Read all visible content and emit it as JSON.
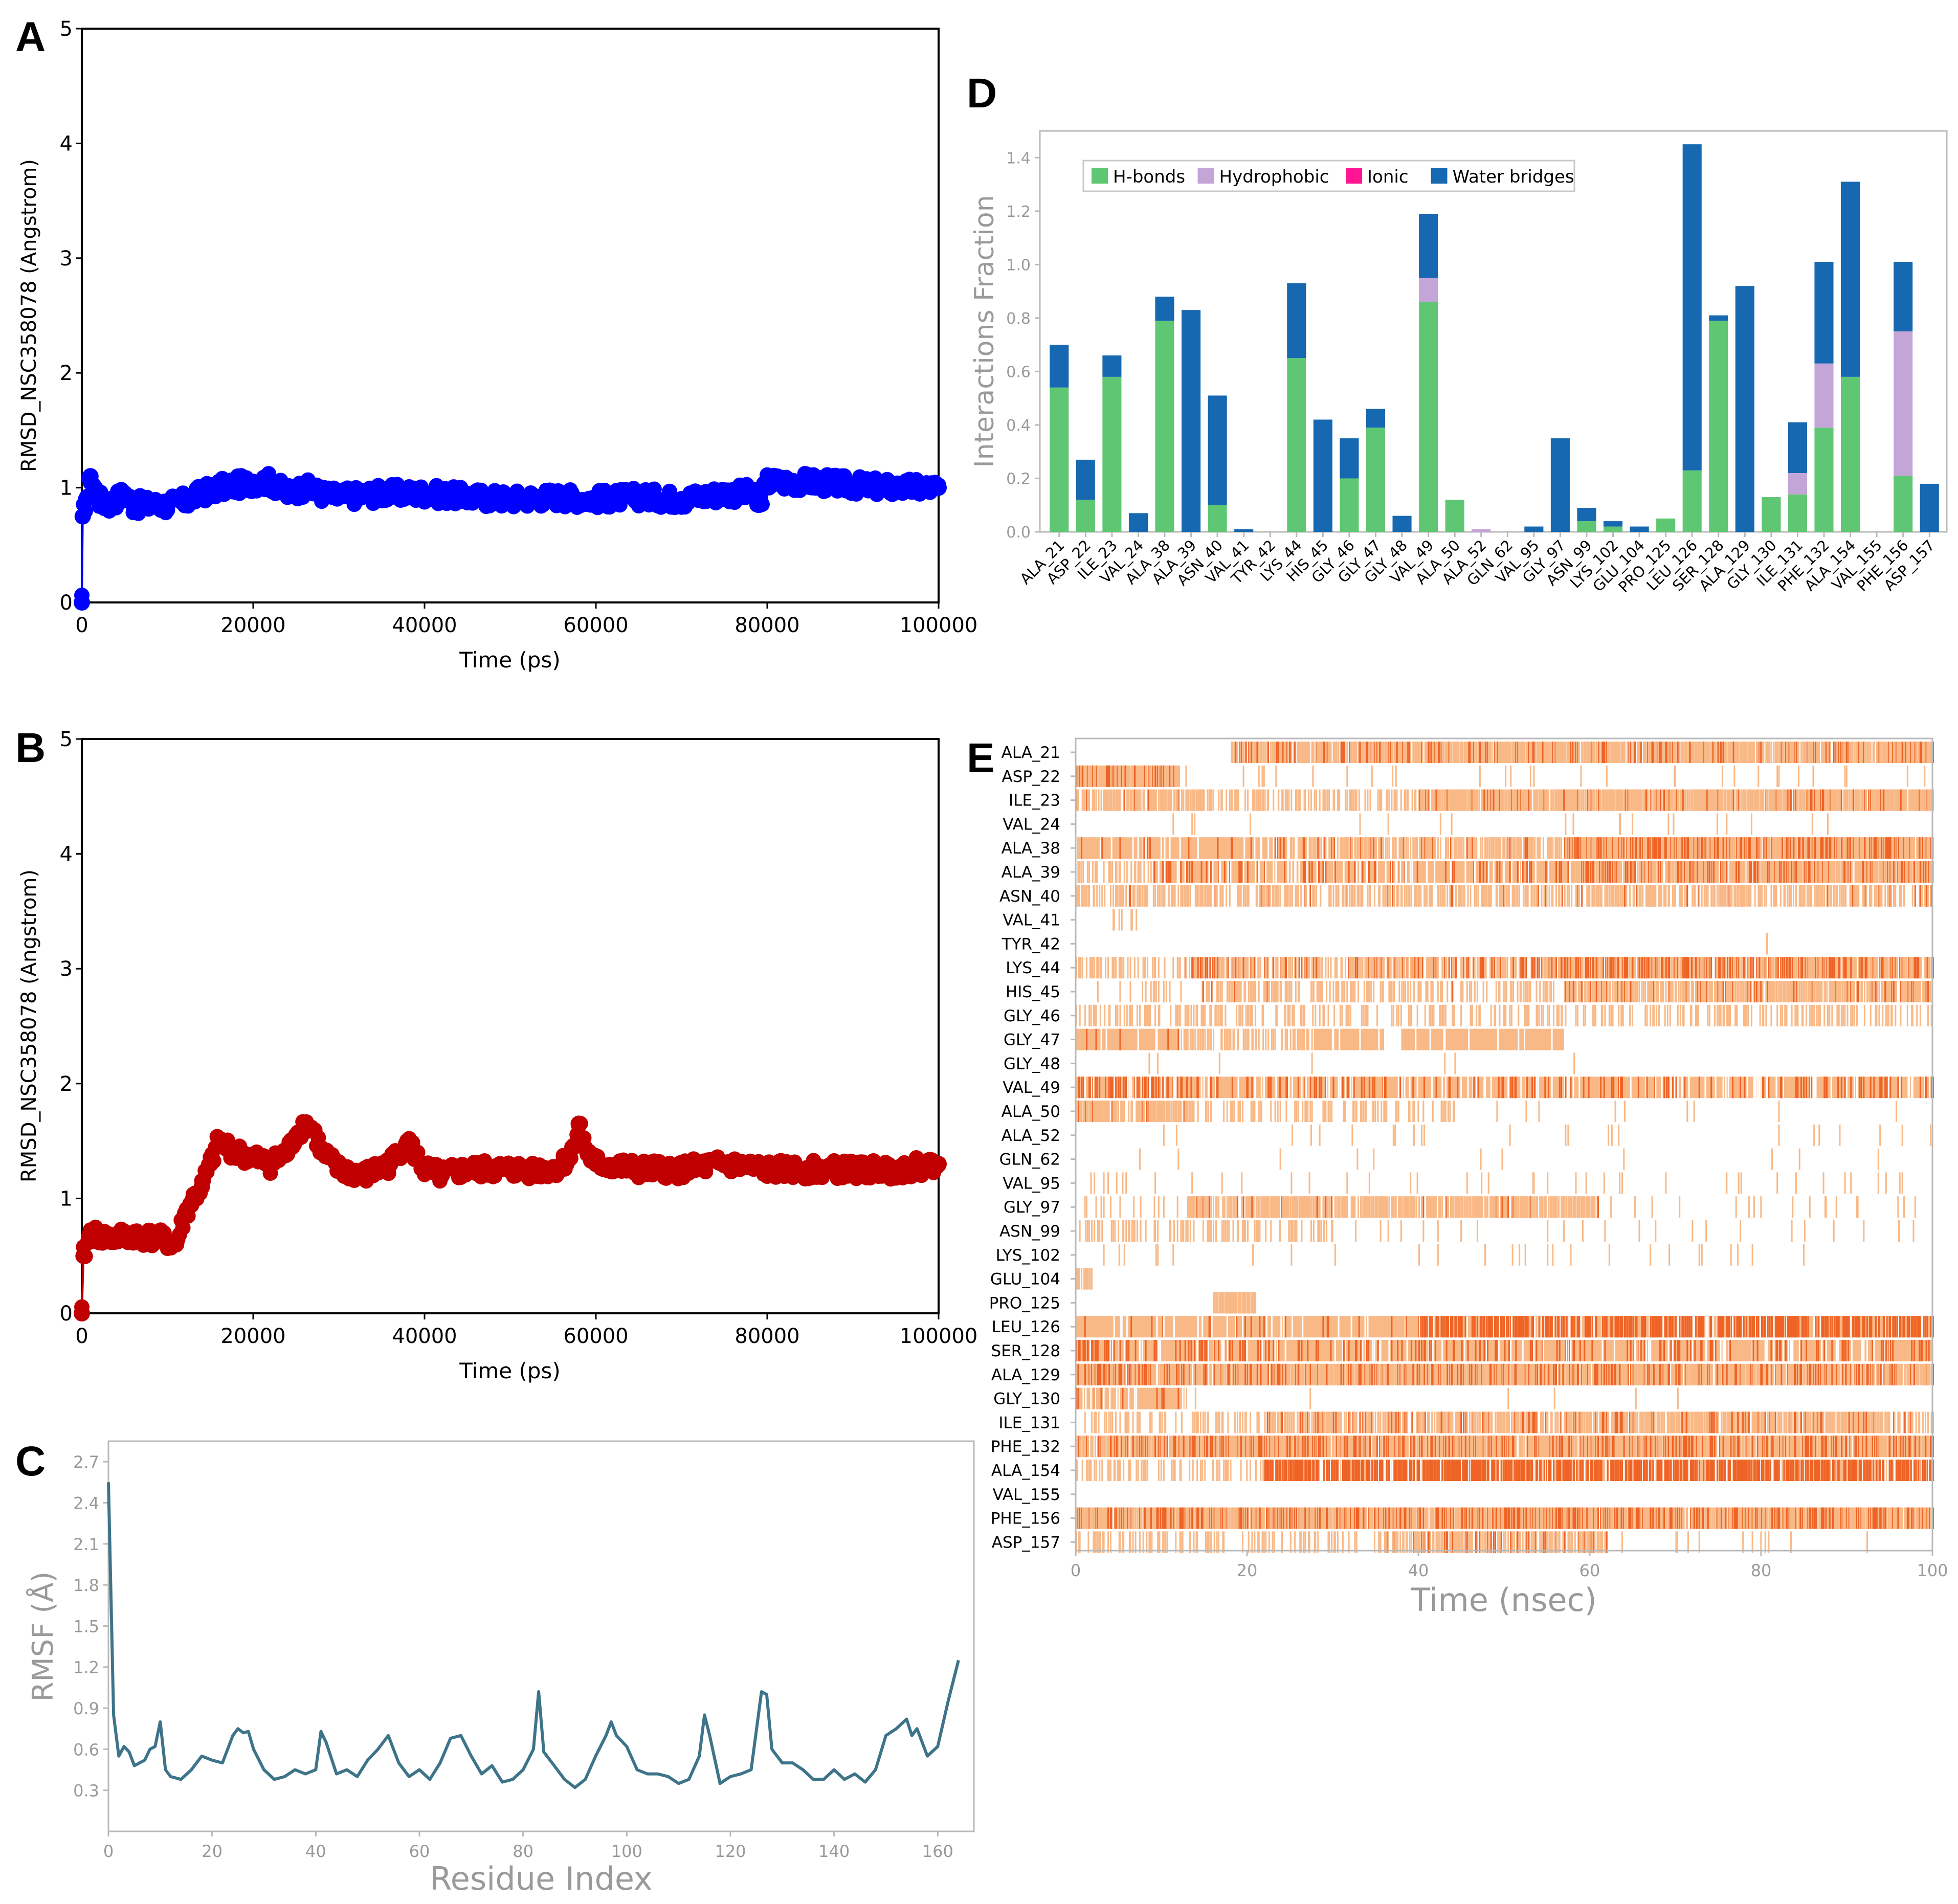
{
  "panels": {
    "A": "A",
    "B": "B",
    "C": "C",
    "D": "D",
    "E": "E"
  },
  "colors": {
    "rmsd_a": "#0000ff",
    "rmsd_b": "#c00000",
    "rmsf": "#3e7489",
    "hbond": "#5fc774",
    "hydrophobic": "#c3a5d8",
    "ionic": "#ff1493",
    "water": "#1668b0",
    "contact_light": "#f9b987",
    "contact_dark": "#ef6426"
  },
  "chart_data": [
    {
      "panel": "A",
      "type": "scatter",
      "xlabel": "Time (ps)",
      "ylabel": "RMSD_NSC358078 (Angstrom)",
      "xlim": [
        0,
        100000
      ],
      "ylim": [
        0,
        5
      ],
      "xticks": [
        "0",
        "20000",
        "40000",
        "60000",
        "80000",
        "100000"
      ],
      "yticks": [
        "0",
        "1",
        "2",
        "3",
        "4",
        "5"
      ],
      "series": [
        {
          "name": "RMSD",
          "x": [
            0,
            100,
            500,
            1000,
            2000,
            3000,
            4000,
            5000,
            6000,
            8000,
            10000,
            12000,
            14000,
            16000,
            18000,
            20000,
            22000,
            24000,
            26000,
            28000,
            30000,
            35000,
            40000,
            45000,
            50000,
            55000,
            60000,
            65000,
            70000,
            75000,
            78000,
            79000,
            80000,
            82000,
            85000,
            90000,
            95000,
            100000
          ],
          "y": [
            0.0,
            0.75,
            0.9,
            1.1,
            0.9,
            0.85,
            0.9,
            0.95,
            0.85,
            0.85,
            0.85,
            0.88,
            0.95,
            1.0,
            1.02,
            1.05,
            1.05,
            0.95,
            1.0,
            0.95,
            0.92,
            0.95,
            0.95,
            0.92,
            0.9,
            0.92,
            0.9,
            0.92,
            0.9,
            0.95,
            0.95,
            0.85,
            1.05,
            1.05,
            1.05,
            1.02,
            1.0,
            1.0
          ]
        }
      ]
    },
    {
      "panel": "B",
      "type": "scatter",
      "xlabel": "Time (ps)",
      "ylabel": "RMSD_NSC358078 (Angstrom)",
      "xlim": [
        0,
        100000
      ],
      "ylim": [
        0,
        5
      ],
      "xticks": [
        "0",
        "20000",
        "40000",
        "60000",
        "80000",
        "100000"
      ],
      "yticks": [
        "0",
        "1",
        "2",
        "3",
        "4",
        "5"
      ],
      "series": [
        {
          "name": "RMSD",
          "x": [
            0,
            200,
            1000,
            3000,
            6000,
            9000,
            11000,
            12000,
            13000,
            14000,
            15000,
            16000,
            18000,
            20000,
            22000,
            24000,
            25000,
            26000,
            27000,
            28000,
            30000,
            33000,
            36000,
            38000,
            40000,
            42000,
            45000,
            50000,
            55000,
            57000,
            58000,
            59000,
            60000,
            65000,
            70000,
            75000,
            80000,
            85000,
            90000,
            95000,
            100000
          ],
          "y": [
            0.0,
            0.5,
            0.7,
            0.65,
            0.68,
            0.65,
            0.6,
            0.85,
            1.0,
            1.1,
            1.3,
            1.5,
            1.4,
            1.35,
            1.3,
            1.4,
            1.55,
            1.65,
            1.6,
            1.4,
            1.25,
            1.2,
            1.3,
            1.5,
            1.25,
            1.2,
            1.25,
            1.25,
            1.25,
            1.35,
            1.65,
            1.4,
            1.3,
            1.25,
            1.25,
            1.3,
            1.25,
            1.25,
            1.25,
            1.25,
            1.3
          ]
        }
      ]
    },
    {
      "panel": "C",
      "type": "line",
      "xlabel": "Residue Index",
      "ylabel": "RMSF (Å)",
      "xlim": [
        0,
        165
      ],
      "ylim": [
        0,
        2.85
      ],
      "xticks": [
        "0",
        "20",
        "40",
        "60",
        "80",
        "100",
        "120",
        "140",
        "160"
      ],
      "yticks": [
        "0.3",
        "0.6",
        "0.9",
        "1.2",
        "1.5",
        "1.8",
        "2.1",
        "2.4",
        "2.7"
      ],
      "series": [
        {
          "name": "RMSF",
          "x": [
            0,
            1,
            2,
            3,
            4,
            5,
            6,
            7,
            8,
            9,
            10,
            11,
            12,
            14,
            16,
            18,
            20,
            22,
            24,
            25,
            26,
            27,
            28,
            30,
            32,
            34,
            36,
            38,
            40,
            41,
            42,
            44,
            46,
            48,
            50,
            52,
            54,
            56,
            58,
            60,
            62,
            64,
            66,
            68,
            70,
            72,
            74,
            76,
            78,
            80,
            82,
            83,
            84,
            86,
            88,
            90,
            92,
            94,
            96,
            97,
            98,
            100,
            102,
            104,
            106,
            108,
            110,
            112,
            114,
            115,
            116,
            118,
            120,
            122,
            124,
            126,
            127,
            128,
            130,
            132,
            134,
            136,
            138,
            140,
            142,
            144,
            146,
            148,
            150,
            152,
            154,
            155,
            156,
            158,
            160,
            162,
            164
          ],
          "y": [
            2.55,
            0.85,
            0.55,
            0.62,
            0.58,
            0.48,
            0.5,
            0.52,
            0.6,
            0.62,
            0.8,
            0.45,
            0.4,
            0.38,
            0.45,
            0.55,
            0.52,
            0.5,
            0.7,
            0.75,
            0.72,
            0.73,
            0.6,
            0.45,
            0.38,
            0.4,
            0.45,
            0.42,
            0.45,
            0.73,
            0.65,
            0.42,
            0.45,
            0.4,
            0.52,
            0.6,
            0.7,
            0.5,
            0.4,
            0.45,
            0.38,
            0.5,
            0.68,
            0.7,
            0.55,
            0.42,
            0.48,
            0.36,
            0.38,
            0.45,
            0.6,
            1.02,
            0.58,
            0.48,
            0.38,
            0.32,
            0.38,
            0.55,
            0.7,
            0.8,
            0.7,
            0.62,
            0.45,
            0.42,
            0.42,
            0.4,
            0.35,
            0.38,
            0.55,
            0.85,
            0.7,
            0.35,
            0.4,
            0.42,
            0.45,
            1.02,
            1.0,
            0.6,
            0.5,
            0.5,
            0.45,
            0.38,
            0.38,
            0.45,
            0.38,
            0.42,
            0.36,
            0.45,
            0.7,
            0.75,
            0.82,
            0.7,
            0.75,
            0.55,
            0.62,
            0.95,
            1.25
          ]
        }
      ]
    },
    {
      "panel": "D",
      "type": "bar",
      "ylabel": "Interactions Fraction",
      "ylim": [
        0,
        1.5
      ],
      "yticks": [
        "0.0",
        "0.2",
        "0.4",
        "0.6",
        "0.8",
        "1.0",
        "1.2",
        "1.4"
      ],
      "legend_position": "top-left",
      "categories": [
        "ALA_21",
        "ASP_22",
        "ILE_23",
        "VAL_24",
        "ALA_38",
        "ALA_39",
        "ASN_40",
        "VAL_41",
        "TYR_42",
        "LYS_44",
        "HIS_45",
        "GLY_46",
        "GLY_47",
        "GLY_48",
        "VAL_49",
        "ALA_50",
        "ALA_52",
        "GLN_62",
        "VAL_95",
        "GLY_97",
        "ASN_99",
        "LYS_102",
        "GLU_104",
        "PRO_125",
        "LEU_126",
        "SER_128",
        "ALA_129",
        "GLY_130",
        "ILE_131",
        "PHE_132",
        "ALA_154",
        "VAL_155",
        "PHE_156",
        "ASP_157"
      ],
      "series": [
        {
          "name": "H-bonds",
          "values": [
            0.54,
            0.12,
            0.58,
            0.0,
            0.79,
            0.0,
            0.1,
            0.0,
            0.0,
            0.65,
            0.0,
            0.2,
            0.39,
            0.0,
            0.86,
            0.12,
            0.0,
            0.0,
            0.0,
            0.0,
            0.04,
            0.02,
            0.0,
            0.05,
            0.23,
            0.79,
            0.0,
            0.13,
            0.14,
            0.39,
            0.58,
            0.0,
            0.21,
            0.0
          ]
        },
        {
          "name": "Hydrophobic",
          "values": [
            0.0,
            0.0,
            0.0,
            0.0,
            0.0,
            0.0,
            0.0,
            0.0,
            0.0,
            0.0,
            0.0,
            0.0,
            0.0,
            0.0,
            0.09,
            0.0,
            0.01,
            0.0,
            0.0,
            0.0,
            0.0,
            0.0,
            0.0,
            0.0,
            0.0,
            0.0,
            0.0,
            0.0,
            0.08,
            0.24,
            0.0,
            0.0,
            0.54,
            0.0
          ]
        },
        {
          "name": "Ionic",
          "values": [
            0.0,
            0.0,
            0.0,
            0.0,
            0.0,
            0.0,
            0.0,
            0.0,
            0.0,
            0.0,
            0.0,
            0.0,
            0.0,
            0.0,
            0.0,
            0.0,
            0.0,
            0.0,
            0.0,
            0.0,
            0.0,
            0.0,
            0.0,
            0.0,
            0.0,
            0.0,
            0.0,
            0.0,
            0.0,
            0.0,
            0.0,
            0.0,
            0.0,
            0.0
          ]
        },
        {
          "name": "Water bridges",
          "values": [
            0.16,
            0.15,
            0.08,
            0.07,
            0.09,
            0.83,
            0.41,
            0.01,
            0.0,
            0.28,
            0.42,
            0.15,
            0.07,
            0.06,
            0.24,
            0.0,
            0.0,
            0.0,
            0.02,
            0.35,
            0.05,
            0.02,
            0.02,
            0.0,
            1.22,
            0.02,
            0.92,
            0.0,
            0.19,
            0.38,
            0.73,
            0.0,
            0.26,
            0.18
          ]
        }
      ]
    },
    {
      "panel": "E",
      "type": "heatmap",
      "xlabel": "Time (nsec)",
      "xlim": [
        0,
        100
      ],
      "xticks": [
        "0",
        "20",
        "40",
        "60",
        "80",
        "100"
      ],
      "rows": [
        "ALA_21",
        "ASP_22",
        "ILE_23",
        "VAL_24",
        "ALA_38",
        "ALA_39",
        "ASN_40",
        "VAL_41",
        "TYR_42",
        "LYS_44",
        "HIS_45",
        "GLY_46",
        "GLY_47",
        "GLY_48",
        "VAL_49",
        "ALA_50",
        "ALA_52",
        "GLN_62",
        "VAL_95",
        "GLY_97",
        "ASN_99",
        "LYS_102",
        "GLU_104",
        "PRO_125",
        "LEU_126",
        "SER_128",
        "ALA_129",
        "GLY_130",
        "ILE_131",
        "PHE_132",
        "ALA_154",
        "VAL_155",
        "PHE_156",
        "ASP_157"
      ],
      "segments": [
        [
          [
            18,
            100,
            0.8,
            0.2
          ]
        ],
        [
          [
            0,
            12,
            0.9,
            0.35
          ],
          [
            12,
            100,
            0.04,
            0.0
          ]
        ],
        [
          [
            0,
            16,
            0.6,
            0.1
          ],
          [
            16,
            40,
            0.35,
            0.0
          ],
          [
            40,
            100,
            0.85,
            0.15
          ]
        ],
        [
          [
            0,
            100,
            0.02,
            0.0
          ]
        ],
        [
          [
            0,
            23,
            0.97,
            0.05
          ],
          [
            23,
            57,
            0.55,
            0.1
          ],
          [
            57,
            100,
            0.9,
            0.35
          ]
        ],
        [
          [
            0,
            9,
            0.3,
            0.0
          ],
          [
            9,
            58,
            0.92,
            0.15
          ],
          [
            58,
            100,
            0.85,
            0.3
          ]
        ],
        [
          [
            0,
            100,
            0.5,
            0.1
          ]
        ],
        [
          [
            4,
            7,
            0.4,
            0.0
          ]
        ],
        [
          [
            0,
            100,
            0.003,
            0.0
          ]
        ],
        [
          [
            0,
            12,
            0.35,
            0.0
          ],
          [
            12,
            57,
            0.6,
            0.3
          ],
          [
            57,
            100,
            0.85,
            0.45
          ]
        ],
        [
          [
            0,
            13,
            0.15,
            0.0
          ],
          [
            13,
            57,
            0.35,
            0.05
          ],
          [
            57,
            100,
            0.75,
            0.15
          ]
        ],
        [
          [
            0,
            100,
            0.3,
            0.0
          ]
        ],
        [
          [
            0,
            13,
            0.95,
            0.05
          ],
          [
            13,
            28,
            0.4,
            0.0
          ],
          [
            28,
            36,
            0.97,
            0.0
          ],
          [
            38,
            57,
            0.97,
            0.0
          ]
        ],
        [
          [
            0,
            100,
            0.005,
            0.0
          ]
        ],
        [
          [
            0,
            12,
            0.95,
            0.4
          ],
          [
            12,
            100,
            0.95,
            0.15
          ]
        ],
        [
          [
            0,
            13,
            0.7,
            0.05
          ],
          [
            13,
            45,
            0.25,
            0.0
          ],
          [
            45,
            100,
            0.02,
            0.0
          ]
        ],
        [
          [
            0,
            100,
            0.02,
            0.0
          ]
        ],
        [
          [
            0,
            100,
            0.01,
            0.0
          ]
        ],
        [
          [
            0,
            100,
            0.04,
            0.0
          ]
        ],
        [
          [
            0,
            13,
            0.1,
            0.0
          ],
          [
            13,
            61,
            0.7,
            0.05
          ],
          [
            61,
            100,
            0.05,
            0.0
          ]
        ],
        [
          [
            0,
            30,
            0.25,
            0.0
          ],
          [
            30,
            100,
            0.03,
            0.0
          ]
        ],
        [
          [
            0,
            100,
            0.03,
            0.0
          ]
        ],
        [
          [
            0,
            2,
            0.8,
            0.0
          ]
        ],
        [
          [
            16,
            21,
            0.9,
            0.0
          ]
        ],
        [
          [
            0,
            40,
            0.97,
            0.05
          ],
          [
            40,
            100,
            0.97,
            0.55
          ]
        ],
        [
          [
            0,
            100,
            0.95,
            0.15
          ]
        ],
        [
          [
            0,
            100,
            0.85,
            0.3
          ]
        ],
        [
          [
            0,
            13,
            0.97,
            0.05
          ],
          [
            13,
            100,
            0.01,
            0.0
          ]
        ],
        [
          [
            0,
            22,
            0.25,
            0.0
          ],
          [
            22,
            100,
            0.65,
            0.2
          ]
        ],
        [
          [
            0,
            100,
            0.85,
            0.35
          ]
        ],
        [
          [
            0,
            22,
            0.3,
            0.0
          ],
          [
            22,
            100,
            0.95,
            0.6
          ]
        ],
        [
          [
            0,
            100,
            0.002,
            0.0
          ]
        ],
        [
          [
            0,
            100,
            0.9,
            0.4
          ]
        ],
        [
          [
            0,
            36,
            0.25,
            0.0
          ],
          [
            36,
            62,
            0.6,
            0.2
          ],
          [
            62,
            100,
            0.03,
            0.0
          ]
        ]
      ]
    }
  ]
}
